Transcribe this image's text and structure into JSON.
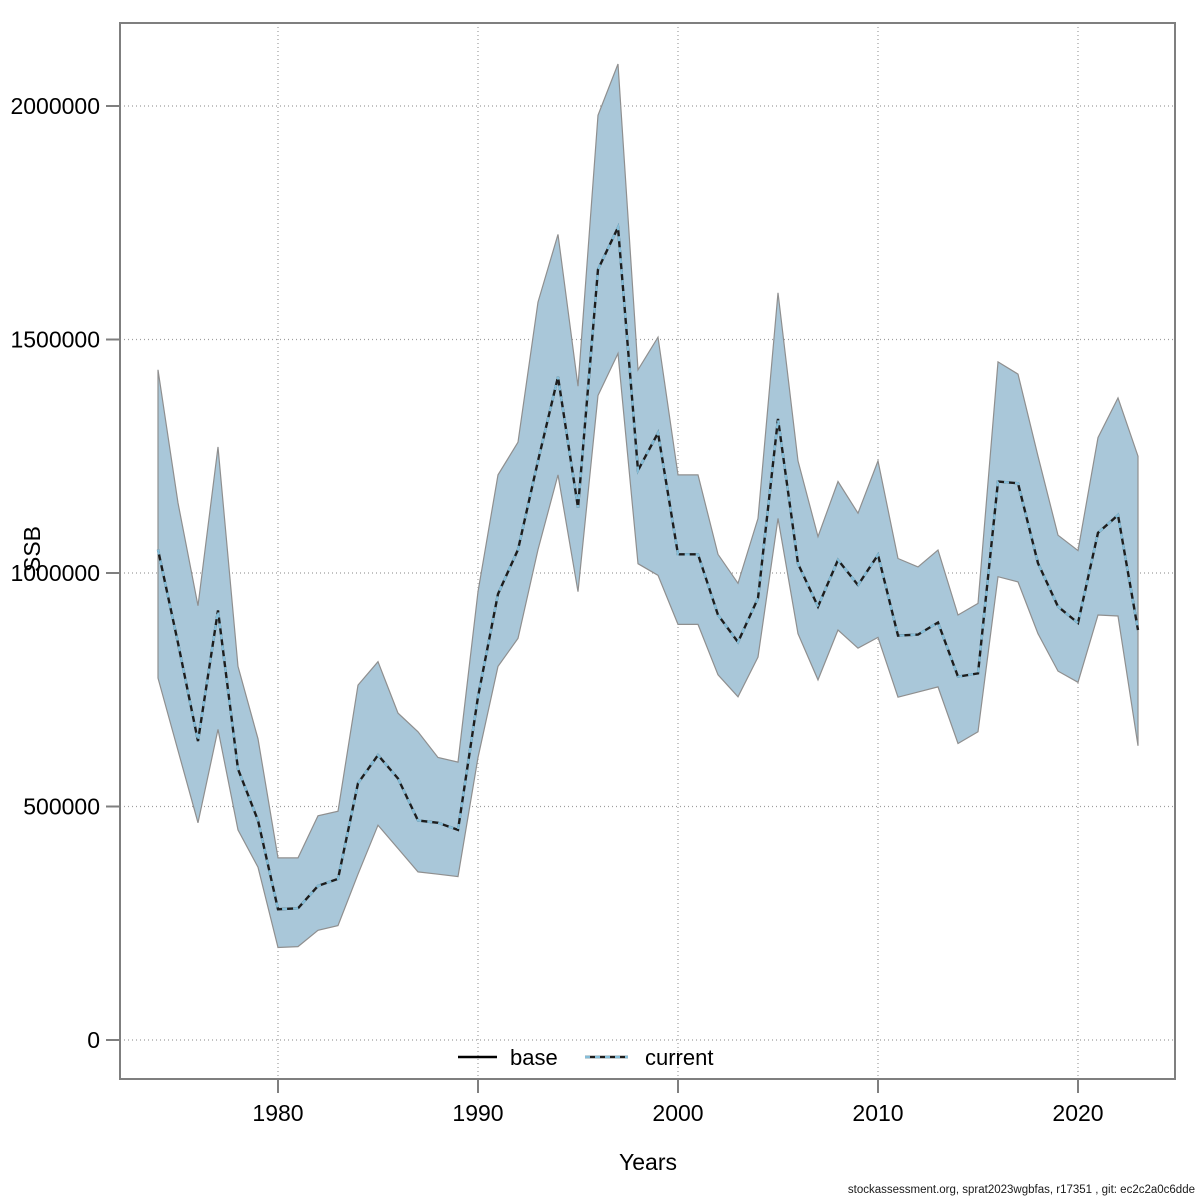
{
  "axes": {
    "y_label": "SSB",
    "x_label": "Years"
  },
  "legend": {
    "base_label": "base",
    "current_label": "current"
  },
  "footer": {
    "text": "stockassessment.org, sprat2023wgbfas, r17351 , git: ec2c2a0c6dde"
  },
  "colors": {
    "band_fill": "#a9c7d9",
    "band_edge": "#8f8f8f",
    "base_line": "#1d1d1d",
    "current_dash": "#85bdd8",
    "grid": "#9e9e9e",
    "frame": "#7f7f7f",
    "tick": "#7f7f7f",
    "text": "#000000"
  },
  "chart_data": {
    "type": "line",
    "title": "",
    "xlabel": "Years",
    "ylabel": "SSB",
    "xlim": [
      1972.1,
      2024.85
    ],
    "ylim": [
      -83500,
      2177700
    ],
    "grid": true,
    "legend_position": "bottom-center-inside",
    "x_tick_values": [
      1980,
      1990,
      2000,
      2010,
      2020
    ],
    "y_tick_values": [
      0,
      500000,
      1000000,
      1500000,
      2000000
    ],
    "y_tick_labels": [
      "0",
      "500000",
      "1000000",
      "1500000",
      "2000000"
    ],
    "x_tick_labels": [
      "1980",
      "1990",
      "2000",
      "2010",
      "2020"
    ],
    "years": [
      1974,
      1975,
      1976,
      1977,
      1978,
      1979,
      1980,
      1981,
      1982,
      1983,
      1984,
      1985,
      1986,
      1987,
      1988,
      1989,
      1990,
      1991,
      1992,
      1993,
      1994,
      1995,
      1996,
      1997,
      1998,
      1999,
      2000,
      2001,
      2002,
      2003,
      2004,
      2005,
      2006,
      2007,
      2008,
      2009,
      2010,
      2011,
      2012,
      2013,
      2014,
      2015,
      2016,
      2017,
      2018,
      2019,
      2020,
      2021,
      2022,
      2023
    ],
    "series": [
      {
        "name": "base",
        "style": "solid dark line, coincides with (hidden beneath) the dashed current line"
      },
      {
        "name": "current",
        "style": "light-blue dashed line over dark base line, with shaded confidence band",
        "values": [
          1050000,
          850000,
          640000,
          920000,
          580000,
          470000,
          280000,
          282000,
          330000,
          345000,
          550000,
          610000,
          560000,
          470000,
          465000,
          450000,
          735000,
          955000,
          1050000,
          1240000,
          1420000,
          1140000,
          1650000,
          1740000,
          1220000,
          1300000,
          1040000,
          1040000,
          910000,
          852000,
          946000,
          1330000,
          1020000,
          928000,
          1028000,
          974000,
          1039000,
          866000,
          868000,
          894000,
          778000,
          785000,
          1196000,
          1192000,
          1021000,
          928000,
          893000,
          1086000,
          1124000,
          878000
        ],
        "ci_lower": [
          775000,
          620000,
          465000,
          665000,
          450000,
          370000,
          198000,
          200000,
          235000,
          245000,
          355000,
          460000,
          410000,
          360000,
          355000,
          350000,
          605000,
          800000,
          860000,
          1050000,
          1210000,
          960000,
          1380000,
          1470000,
          1020000,
          995000,
          890000,
          890000,
          782000,
          735000,
          820000,
          1117000,
          870000,
          771000,
          878000,
          839000,
          862000,
          734000,
          745000,
          756000,
          635000,
          660000,
          992000,
          981000,
          870000,
          790000,
          766000,
          910000,
          908000,
          630000
        ],
        "ci_upper": [
          1435000,
          1150000,
          930000,
          1270000,
          800000,
          645000,
          390000,
          390000,
          480000,
          490000,
          760000,
          810000,
          700000,
          660000,
          605000,
          595000,
          960000,
          1210000,
          1280000,
          1580000,
          1725000,
          1400000,
          1980000,
          2090000,
          1435000,
          1505000,
          1210000,
          1210000,
          1040000,
          978000,
          1117000,
          1600000,
          1240000,
          1078000,
          1196000,
          1128000,
          1240000,
          1031000,
          1013000,
          1049000,
          910000,
          935000,
          1452000,
          1426000,
          1250000,
          1081000,
          1048000,
          1290000,
          1375000,
          1250000
        ]
      }
    ]
  }
}
